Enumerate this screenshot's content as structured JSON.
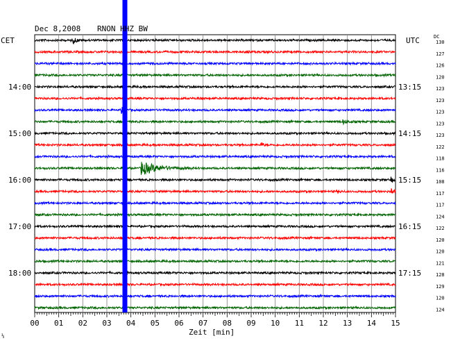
{
  "header": {
    "date": "Dec 8,2008",
    "station": "RNON HHZ BW"
  },
  "left_zone": "CET",
  "right_zone": "UTC",
  "dc_header": "DC",
  "left_hour_labels": [
    "14:00",
    "15:00",
    "16:00",
    "17:00",
    "18:00"
  ],
  "right_hour_labels": [
    "13:15",
    "14:15",
    "15:15",
    "16:15",
    "17:15"
  ],
  "footer_mark": "⅓",
  "colors": {
    "trace_cycle": [
      "#000000",
      "#ff0000",
      "#0000ff",
      "#006400"
    ],
    "grid": "#808080",
    "marker": "#0000ff"
  },
  "chart_data": {
    "type": "line",
    "title": "Dec 8,2008  RNON HHZ BW",
    "xlabel": "Zeit [min]",
    "x_ticks": [
      "00",
      "01",
      "02",
      "03",
      "04",
      "05",
      "06",
      "07",
      "08",
      "09",
      "10",
      "11",
      "12",
      "13",
      "14",
      "15"
    ],
    "xlim": [
      0,
      15
    ],
    "minutes_per_line": 15,
    "traces": 24,
    "dc_values": [
      130,
      127,
      126,
      120,
      123,
      123,
      123,
      123,
      123,
      122,
      118,
      116,
      108,
      117,
      117,
      124,
      122,
      120,
      120,
      121,
      128,
      129,
      120,
      124
    ],
    "vertical_marker_minute": 3.75,
    "events": [
      {
        "trace": 0,
        "minute": 1.6,
        "amplitude": 4,
        "duration": 0.6
      },
      {
        "trace": 1,
        "minute": 8.8,
        "amplitude": 5,
        "duration": 0.25
      },
      {
        "trace": 5,
        "minute": 6.8,
        "amplitude": 2,
        "duration": 0.4
      },
      {
        "trace": 6,
        "minute": 3.6,
        "amplitude": 4,
        "duration": 0.4
      },
      {
        "trace": 7,
        "minute": 12.8,
        "amplitude": 3,
        "duration": 0.8
      },
      {
        "trace": 9,
        "minute": 9.4,
        "amplitude": 6,
        "duration": 0.25
      },
      {
        "trace": 11,
        "minute": 4.4,
        "amplitude": 10,
        "duration": 2.4
      },
      {
        "trace": 12,
        "minute": 14.8,
        "amplitude": 6,
        "duration": 0.25
      },
      {
        "trace": 13,
        "minute": 14.8,
        "amplitude": 5,
        "duration": 0.5
      },
      {
        "trace": 13,
        "minute": 12.6,
        "amplitude": 2,
        "duration": 0.3
      }
    ]
  }
}
